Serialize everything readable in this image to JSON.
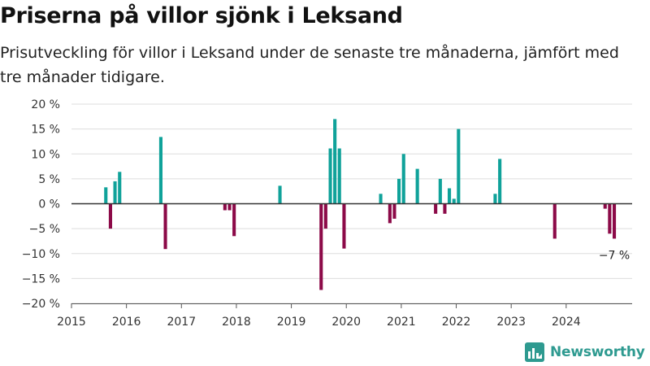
{
  "chart_data": {
    "type": "bar",
    "title": "Priserna på villor sjönk i Leksand",
    "subtitle": "Prisutveckling för villor i Leksand under de senaste tre månaderna, jämfört med tre månader tidigare.",
    "xlabel": "",
    "ylabel": "",
    "xlim": [
      2015,
      2025.2
    ],
    "ylim": [
      -20,
      20
    ],
    "x_ticks": [
      "2015",
      "2016",
      "2017",
      "2018",
      "2019",
      "2020",
      "2021",
      "2022",
      "2023",
      "2024"
    ],
    "y_ticks": [
      "20 %",
      "15 %",
      "10 %",
      "5 %",
      "0 %",
      "−5 %",
      "−10 %",
      "−15 %",
      "−20 %"
    ],
    "y_tick_values": [
      20,
      15,
      10,
      5,
      0,
      -5,
      -10,
      -15,
      -20
    ],
    "grid": true,
    "colors": {
      "positive": "#10a29a",
      "negative": "#8c0a48"
    },
    "points": [
      {
        "x": "2015-08",
        "y": 3.3
      },
      {
        "x": "2015-09",
        "y": -5.0
      },
      {
        "x": "2015-10",
        "y": 4.5
      },
      {
        "x": "2015-11",
        "y": 6.4
      },
      {
        "x": "2016-08",
        "y": 13.4
      },
      {
        "x": "2016-09",
        "y": -9.1
      },
      {
        "x": "2017-10",
        "y": -1.3
      },
      {
        "x": "2017-11",
        "y": -1.3
      },
      {
        "x": "2017-12",
        "y": -6.5
      },
      {
        "x": "2018-10",
        "y": 3.6
      },
      {
        "x": "2019-07",
        "y": -17.3
      },
      {
        "x": "2019-08",
        "y": -5.0
      },
      {
        "x": "2019-09",
        "y": 11.1
      },
      {
        "x": "2019-10",
        "y": 17.0
      },
      {
        "x": "2019-11",
        "y": 11.1
      },
      {
        "x": "2019-12",
        "y": -9.0
      },
      {
        "x": "2020-08",
        "y": 2.0
      },
      {
        "x": "2020-10",
        "y": -3.9
      },
      {
        "x": "2020-11",
        "y": -3.0
      },
      {
        "x": "2020-12",
        "y": 5.0
      },
      {
        "x": "2021-01",
        "y": 10.0
      },
      {
        "x": "2021-04",
        "y": 7.0
      },
      {
        "x": "2021-08",
        "y": -2.0
      },
      {
        "x": "2021-09",
        "y": 5.0
      },
      {
        "x": "2021-10",
        "y": -2.0
      },
      {
        "x": "2021-11",
        "y": 3.1
      },
      {
        "x": "2021-12",
        "y": 1.0
      },
      {
        "x": "2022-01",
        "y": 15.0
      },
      {
        "x": "2022-09",
        "y": 2.0
      },
      {
        "x": "2022-10",
        "y": 9.0
      },
      {
        "x": "2023-10",
        "y": -7.0
      },
      {
        "x": "2024-09",
        "y": -1.0
      },
      {
        "x": "2024-10",
        "y": -6.0
      },
      {
        "x": "2024-11",
        "y": -7.0
      }
    ],
    "annotation": "−7 %"
  },
  "branding": {
    "logo_text": "Newsworthy",
    "icon": "newsworthy-chart-icon",
    "color": "#2e9a90"
  }
}
